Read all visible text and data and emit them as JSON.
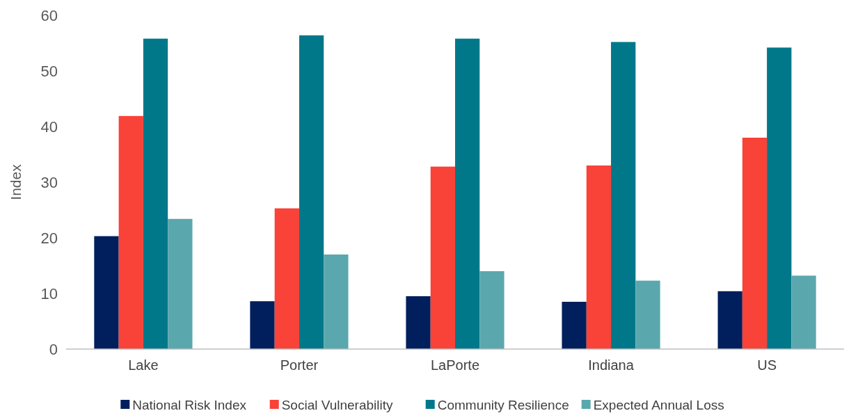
{
  "chart_data": {
    "type": "bar",
    "ylabel": "Index",
    "categories": [
      "Lake",
      "Porter",
      "LaPorte",
      "Indiana",
      "US"
    ],
    "series": [
      {
        "name": "National Risk Index",
        "color": "#001f5c",
        "values": [
          20.3,
          8.6,
          9.5,
          8.5,
          10.4
        ]
      },
      {
        "name": "Social Vulnerability",
        "color": "#f94238",
        "values": [
          41.9,
          25.3,
          32.8,
          33.0,
          38.0
        ]
      },
      {
        "name": "Community Resilience",
        "color": "#00788a",
        "values": [
          55.8,
          56.4,
          55.8,
          55.2,
          54.2
        ]
      },
      {
        "name": "Expected Annual Loss",
        "color": "#5aa8ae",
        "values": [
          23.4,
          17.0,
          14.0,
          12.3,
          13.2
        ]
      }
    ],
    "ylim": [
      0,
      60
    ],
    "yticks": [
      0,
      10,
      20,
      30,
      40,
      50,
      60
    ],
    "grid": false,
    "legend": "bottom"
  }
}
